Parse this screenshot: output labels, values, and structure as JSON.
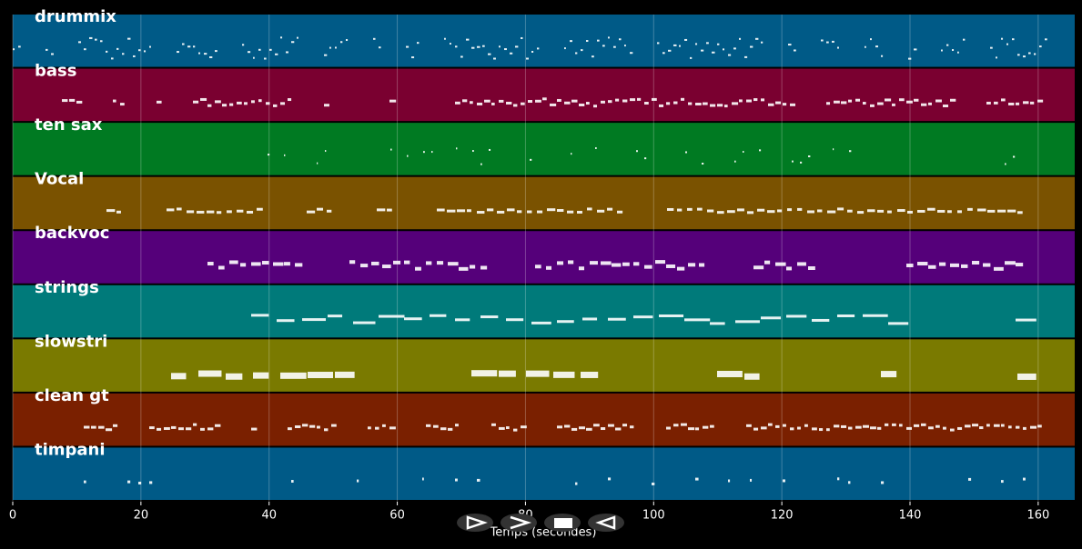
{
  "chart_data": {
    "type": "pianoroll",
    "tracks": [
      {
        "name": "drummix",
        "color": "#005a87"
      },
      {
        "name": "bass",
        "color": "#7a0030"
      },
      {
        "name": "ten sax",
        "color": "#007a22"
      },
      {
        "name": "Vocal",
        "color": "#7a5200"
      },
      {
        "name": "backvoc",
        "color": "#55007a"
      },
      {
        "name": "strings",
        "color": "#007a7a"
      },
      {
        "name": "slowstri",
        "color": "#7a7a00"
      },
      {
        "name": "clean gt",
        "color": "#7a2000"
      },
      {
        "name": "timpani",
        "color": "#005a87"
      }
    ],
    "xlabel": "Temps (secondes)",
    "xlim": [
      0,
      165.7
    ],
    "xticks": [
      0,
      20,
      40,
      60,
      80,
      100,
      120,
      140,
      160
    ],
    "grid": true
  }
}
